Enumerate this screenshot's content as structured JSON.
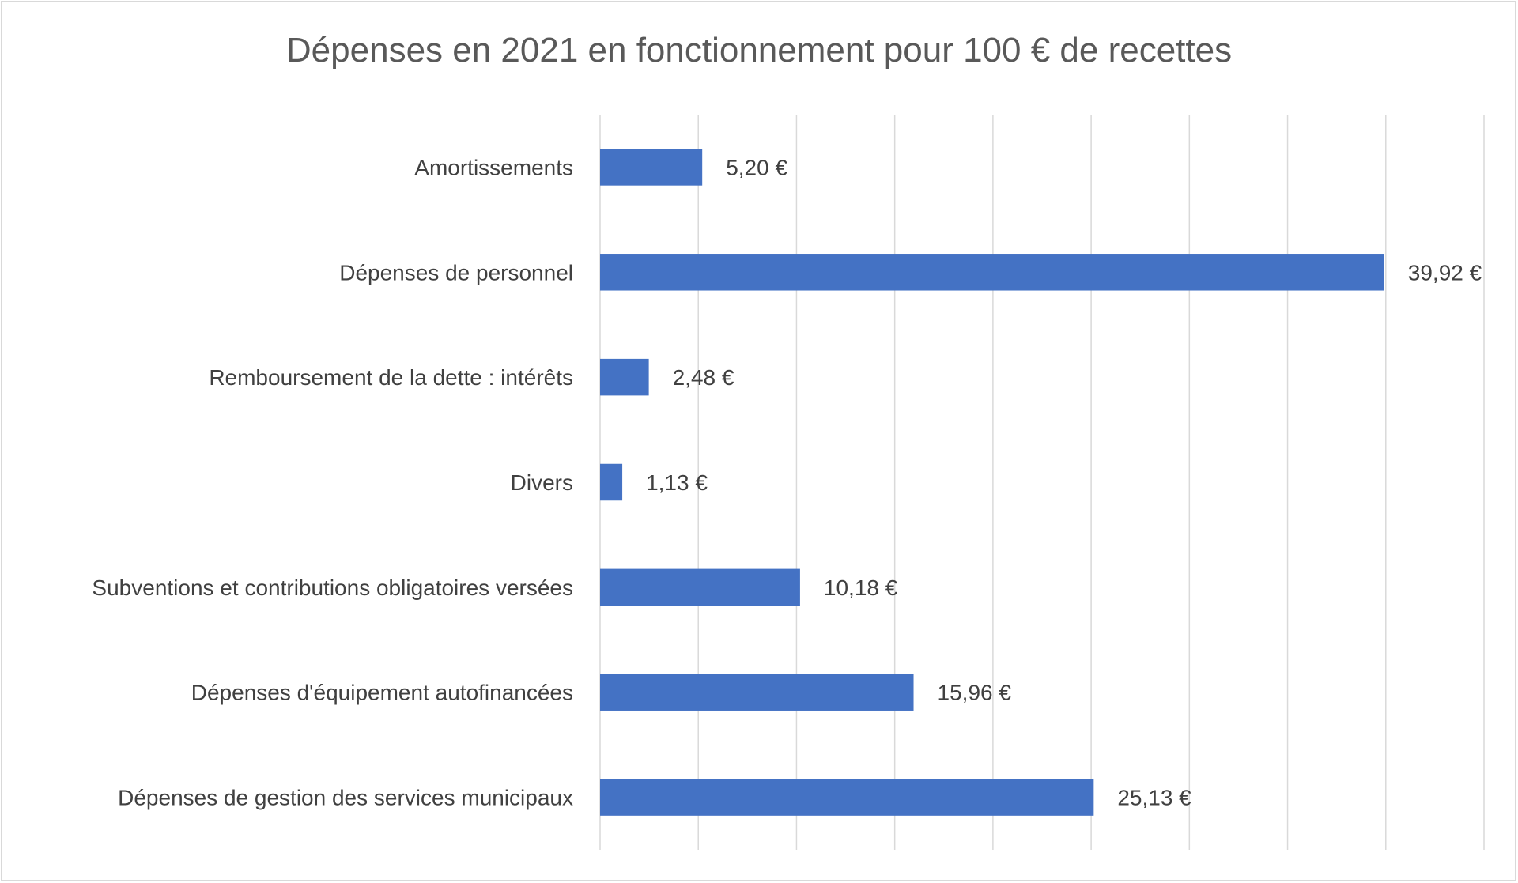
{
  "chart_data": {
    "type": "bar",
    "orientation": "horizontal",
    "title": "Dépenses en 2021 en fonctionnement pour 100 € de recettes",
    "categories": [
      "Amortissements",
      "Dépenses de personnel",
      "Remboursement de la dette : intérêts",
      "Divers",
      "Subventions et contributions obligatoires versées",
      "Dépenses d'équipement autofinancées",
      "Dépenses de gestion des services municipaux"
    ],
    "values": [
      5.2,
      39.92,
      2.48,
      1.13,
      10.18,
      15.96,
      25.13
    ],
    "value_labels": [
      "5,20 €",
      "39,92 €",
      "2,48 €",
      "1,13 €",
      "10,18 €",
      "15,96 €",
      "25,13 €"
    ],
    "xlim": [
      0,
      45
    ],
    "x_gridline_step": 5,
    "grid": true,
    "x_tick_labels_visible": false,
    "legend": "none",
    "bar_color": "#4472C4",
    "gridline_color": "#d9d9d9"
  }
}
